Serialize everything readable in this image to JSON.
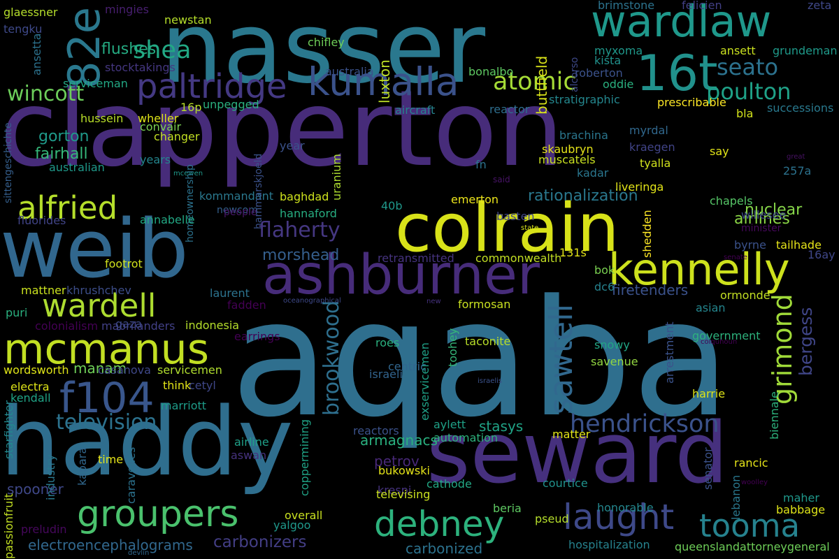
{
  "background": "#000000",
  "words": [
    {
      "text": "aqaba",
      "color": "#2f6f8e"
    },
    {
      "text": "clapperton",
      "color": "#472c7a"
    },
    {
      "text": "nasser",
      "color": "#2a788e"
    },
    {
      "text": "haddy",
      "color": "#2f6e8e"
    },
    {
      "text": "seward",
      "color": "#46307e"
    },
    {
      "text": "weib",
      "color": "#31678e"
    },
    {
      "text": "colrain",
      "color": "#d8e219"
    },
    {
      "text": "ashburner",
      "color": "#472c7a"
    },
    {
      "text": "kennelly",
      "color": "#cde11d"
    },
    {
      "text": "mcmanus",
      "color": "#c2df23"
    },
    {
      "text": "wardlaw",
      "color": "#1f988b"
    },
    {
      "text": "16t",
      "color": "#21918c"
    },
    {
      "text": "kumalla",
      "color": "#3b528b"
    },
    {
      "text": "paltridge",
      "color": "#443983"
    },
    {
      "text": "82e",
      "color": "#2a788e"
    },
    {
      "text": "groupers",
      "color": "#4ac16d"
    },
    {
      "text": "debney",
      "color": "#2db27d"
    },
    {
      "text": "laught",
      "color": "#3e4989"
    },
    {
      "text": "tooma",
      "color": "#26828e"
    },
    {
      "text": "f104",
      "color": "#39568c"
    },
    {
      "text": "wardell",
      "color": "#addc30"
    },
    {
      "text": "alfried",
      "color": "#b5de2b"
    },
    {
      "text": "sawtell",
      "color": "#31688e"
    },
    {
      "text": "shea",
      "color": "#22a884"
    },
    {
      "text": "atomic",
      "color": "#a5db36"
    },
    {
      "text": "hendrickson",
      "color": "#3b528b"
    },
    {
      "text": "television",
      "color": "#2c728e"
    },
    {
      "text": "grimond",
      "color": "#a0da39"
    },
    {
      "text": "flaherty",
      "color": "#453781"
    },
    {
      "text": "seato",
      "color": "#2c728e"
    },
    {
      "text": "poulton",
      "color": "#1fa187"
    },
    {
      "text": "wincott",
      "color": "#6ccd5a"
    },
    {
      "text": "brookwood",
      "color": "#2e6f8e"
    },
    {
      "text": "bergess",
      "color": "#404688"
    },
    {
      "text": "carbonizers",
      "color": "#433e85"
    },
    {
      "text": "electroencephalograms",
      "color": "#31688e"
    },
    {
      "text": "buttfield",
      "color": "#d8e219"
    },
    {
      "text": "rationalization",
      "color": "#2a788e"
    },
    {
      "text": "nuclear",
      "color": "#86d549"
    },
    {
      "text": "airlines",
      "color": "#8bd646"
    },
    {
      "text": "morshead",
      "color": "#355f8d"
    },
    {
      "text": "fairhall",
      "color": "#35b779"
    },
    {
      "text": "gorton",
      "color": "#1f9a8a"
    },
    {
      "text": "luxton",
      "color": "#bddf26"
    },
    {
      "text": "flushes",
      "color": "#25ab82"
    },
    {
      "text": "firetenders",
      "color": "#3b528b"
    },
    {
      "text": "stasys",
      "color": "#20a386"
    },
    {
      "text": "manam",
      "color": "#6ece58"
    },
    {
      "text": "spooner",
      "color": "#3f4889"
    },
    {
      "text": "petrov",
      "color": "#482878"
    },
    {
      "text": "carbonized",
      "color": "#2c728e"
    },
    {
      "text": "armagnacs",
      "color": "#2ab07f"
    },
    {
      "text": "footrot",
      "color": "#d0e11c"
    },
    {
      "text": "television",
      "color": "#2c728e"
    },
    {
      "text": "commonwealth",
      "color": "#c2df23"
    },
    {
      "text": "retransmitted",
      "color": "#46337f"
    },
    {
      "text": "hussein",
      "color": "#b8de29"
    },
    {
      "text": "mattner",
      "color": "#cae11f"
    },
    {
      "text": "khrushchev",
      "color": "#3d4e8a"
    },
    {
      "text": "laurent",
      "color": "#2c738e"
    },
    {
      "text": "indonesia",
      "color": "#b5de2b"
    },
    {
      "text": "australian",
      "color": "#1f998a"
    },
    {
      "text": "convair",
      "color": "#7ad151"
    },
    {
      "text": "fadden",
      "color": "#440154"
    },
    {
      "text": "colonialism",
      "color": "#440154"
    },
    {
      "text": "maorilanders",
      "color": "#424086"
    },
    {
      "text": "earrings",
      "color": "#440154"
    },
    {
      "text": "electra",
      "color": "#dde318"
    },
    {
      "text": "kendall",
      "color": "#20a386"
    },
    {
      "text": "wordsworth",
      "color": "#dde318"
    },
    {
      "text": "casanova",
      "color": "#3f4889"
    },
    {
      "text": "servicemen",
      "color": "#b0dd2f"
    },
    {
      "text": "cetyl",
      "color": "#3f4788"
    },
    {
      "text": "think",
      "color": "#e2e418"
    },
    {
      "text": "marriott",
      "color": "#1e9c89"
    },
    {
      "text": "starfighter",
      "color": "#23888e"
    },
    {
      "text": "airline",
      "color": "#1fa088"
    },
    {
      "text": "aswan",
      "color": "#46327e"
    },
    {
      "text": "reactors",
      "color": "#3b528b"
    },
    {
      "text": "matter",
      "color": "#e2e418"
    },
    {
      "text": "aylett",
      "color": "#1fa187"
    },
    {
      "text": "automation",
      "color": "#2db27d"
    },
    {
      "text": "coppermining",
      "color": "#20a386"
    },
    {
      "text": "exservicemen",
      "color": "#1fa187"
    },
    {
      "text": "toohey",
      "color": "#35b779"
    },
    {
      "text": "taconite",
      "color": "#b8de29"
    },
    {
      "text": "formosan",
      "color": "#c8e020"
    },
    {
      "text": "centric",
      "color": "#31668e"
    },
    {
      "text": "israeli",
      "color": "#32648e"
    },
    {
      "text": "roes",
      "color": "#2ab07f"
    },
    {
      "text": "snowy",
      "color": "#21a685"
    },
    {
      "text": "savenue",
      "color": "#93d741"
    },
    {
      "text": "harrie",
      "color": "#dde318"
    },
    {
      "text": "biennale",
      "color": "#2db27d"
    },
    {
      "text": "arrestment",
      "color": "#3b528b"
    },
    {
      "text": "government",
      "color": "#2db27d"
    },
    {
      "text": "colquhoun",
      "color": "#440154"
    },
    {
      "text": "asian",
      "color": "#24868e"
    },
    {
      "text": "ormonde",
      "color": "#c2df23"
    },
    {
      "text": "tailhade",
      "color": "#e5e419"
    },
    {
      "text": "byrne",
      "color": "#3b528b"
    },
    {
      "text": "minister",
      "color": "#46085c"
    },
    {
      "text": "chapels",
      "color": "#56c667"
    },
    {
      "text": "willesee",
      "color": "#3e4989"
    },
    {
      "text": "senate",
      "color": "#440154"
    },
    {
      "text": "16ay",
      "color": "#3f4788"
    },
    {
      "text": "shedden",
      "color": "#fde725"
    },
    {
      "text": "kadar",
      "color": "#2a768e"
    },
    {
      "text": "liveringa",
      "color": "#e2e418"
    },
    {
      "text": "257a",
      "color": "#2c728e"
    },
    {
      "text": "tyalla",
      "color": "#d0e11c"
    },
    {
      "text": "kraegen",
      "color": "#414487"
    },
    {
      "text": "muscatels",
      "color": "#c8e020"
    },
    {
      "text": "skaubryn",
      "color": "#e5e419"
    },
    {
      "text": "brachina",
      "color": "#2a768e"
    },
    {
      "text": "myrdal",
      "color": "#31688e"
    },
    {
      "text": "say",
      "color": "#e2e418"
    },
    {
      "text": "fn",
      "color": "#2c728e"
    },
    {
      "text": "said",
      "color": "#481467"
    },
    {
      "text": "uranium",
      "color": "#addc30"
    },
    {
      "text": "baghdad",
      "color": "#cde11d"
    },
    {
      "text": "hannaford",
      "color": "#27ad81"
    },
    {
      "text": "40b",
      "color": "#1f988b"
    },
    {
      "text": "emerton",
      "color": "#ece51b"
    },
    {
      "text": "basten",
      "color": "#404688"
    },
    {
      "text": "131s",
      "color": "#e2e418"
    },
    {
      "text": "bok",
      "color": "#7ad151"
    },
    {
      "text": "dc6",
      "color": "#26828e"
    },
    {
      "text": "state",
      "color": "#d8e219"
    },
    {
      "text": "great",
      "color": "#471164"
    },
    {
      "text": "year",
      "color": "#3b528b"
    },
    {
      "text": "years",
      "color": "#24868e"
    },
    {
      "text": "changer",
      "color": "#c2df23"
    },
    {
      "text": "gaza",
      "color": "#3e4989"
    },
    {
      "text": "wheller",
      "color": "#dde318"
    },
    {
      "text": "16p",
      "color": "#b8de29"
    },
    {
      "text": "unpegged",
      "color": "#2ab07f"
    },
    {
      "text": "aircraft",
      "color": "#26828e"
    },
    {
      "text": "reactor",
      "color": "#2e6e8e"
    },
    {
      "text": "stratigraphic",
      "color": "#24878e"
    },
    {
      "text": "prescribable",
      "color": "#fde725"
    },
    {
      "text": "bla",
      "color": "#d2e21b"
    },
    {
      "text": "successions",
      "color": "#29798e"
    },
    {
      "text": "oddie",
      "color": "#2ab07f"
    },
    {
      "text": "roberton",
      "color": "#3b528b"
    },
    {
      "text": "kista",
      "color": "#21918c"
    },
    {
      "text": "myxoma",
      "color": "#1f988b"
    },
    {
      "text": "alcorso",
      "color": "#3e4989"
    },
    {
      "text": "bonalbo",
      "color": "#5ec962"
    },
    {
      "text": "australia",
      "color": "#3b528b"
    },
    {
      "text": "stocktakings",
      "color": "#453781"
    },
    {
      "text": "serviceman",
      "color": "#22a884"
    },
    {
      "text": "chifley",
      "color": "#6ece58"
    },
    {
      "text": "newstan",
      "color": "#b5de2b"
    },
    {
      "text": "mingies",
      "color": "#481f70"
    },
    {
      "text": "glaessner",
      "color": "#b5de2b"
    },
    {
      "text": "tengku",
      "color": "#3e4989"
    },
    {
      "text": "ansetta",
      "color": "#2c728e"
    },
    {
      "text": "brimstone",
      "color": "#2c738e"
    },
    {
      "text": "felicien",
      "color": "#423f85"
    },
    {
      "text": "zeta",
      "color": "#3f4889"
    },
    {
      "text": "ansett",
      "color": "#cae11f"
    },
    {
      "text": "grundeman",
      "color": "#1f9a8a"
    },
    {
      "text": "sittengeschichte",
      "color": "#355f8d"
    },
    {
      "text": "fluorides",
      "color": "#414487"
    },
    {
      "text": "mcewen",
      "color": "#1f988b"
    },
    {
      "text": "kommandant",
      "color": "#2a788e"
    },
    {
      "text": "newcom",
      "color": "#355f8d"
    },
    {
      "text": "people",
      "color": "#481769"
    },
    {
      "text": "homeownership",
      "color": "#2c728e"
    },
    {
      "text": "hammarskjoeld",
      "color": "#3b528b"
    },
    {
      "text": "annabelle",
      "color": "#22a884"
    },
    {
      "text": "puri",
      "color": "#2ab07f"
    },
    {
      "text": "oceanographical",
      "color": "#3e4989"
    },
    {
      "text": "new",
      "color": "#46327e"
    },
    {
      "text": "israelis",
      "color": "#3b528b"
    },
    {
      "text": "time",
      "color": "#e5e419"
    },
    {
      "text": "kapara",
      "color": "#31688e"
    },
    {
      "text": "caravelles",
      "color": "#2c728e"
    },
    {
      "text": "industry",
      "color": "#2a788e"
    },
    {
      "text": "passionfruit",
      "color": "#c2df23"
    },
    {
      "text": "preludin",
      "color": "#46085c"
    },
    {
      "text": "devlin",
      "color": "#31688e"
    },
    {
      "text": "overall",
      "color": "#c8e020"
    },
    {
      "text": "yalgoo",
      "color": "#1f988b"
    },
    {
      "text": "krespi",
      "color": "#46327e"
    },
    {
      "text": "bukowski",
      "color": "#e5e419"
    },
    {
      "text": "televising",
      "color": "#cae11f"
    },
    {
      "text": "cathode",
      "color": "#22a884"
    },
    {
      "text": "courtice",
      "color": "#20928c"
    },
    {
      "text": "beria",
      "color": "#5ec962"
    },
    {
      "text": "pseud",
      "color": "#b5de2b"
    },
    {
      "text": "honorable",
      "color": "#24878e"
    },
    {
      "text": "hospitalization",
      "color": "#26828e"
    },
    {
      "text": "queenslandattorneygeneral",
      "color": "#6ece58"
    },
    {
      "text": "rancic",
      "color": "#e5e419"
    },
    {
      "text": "senator",
      "color": "#3b528b"
    },
    {
      "text": "lebanon",
      "color": "#2a788e"
    },
    {
      "text": "woolley",
      "color": "#440154"
    },
    {
      "text": "maher",
      "color": "#1f988b"
    },
    {
      "text": "babbage",
      "color": "#dde318"
    }
  ]
}
